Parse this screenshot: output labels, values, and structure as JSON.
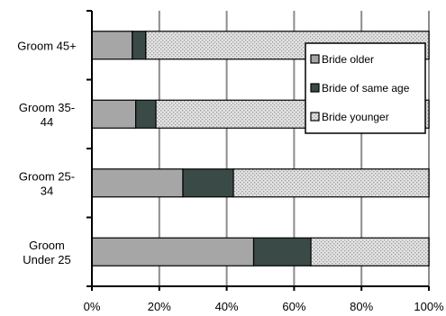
{
  "chart_data": {
    "type": "bar",
    "orientation": "horizontal",
    "stacked": true,
    "percent": true,
    "title": "",
    "xlabel": "",
    "ylabel": "",
    "xlim": [
      0,
      100
    ],
    "x_ticks": [
      "0%",
      "20%",
      "40%",
      "60%",
      "80%",
      "100%"
    ],
    "grid": true,
    "legend_position": "top-right",
    "categories": [
      [
        "Groom 45+"
      ],
      [
        "Groom 35-",
        "44"
      ],
      [
        "Groom 25-",
        "34"
      ],
      [
        "Groom",
        "Under 25"
      ]
    ],
    "series": [
      {
        "name": "Bride older",
        "color": "#a6a6a6",
        "pattern": "solid",
        "values": [
          12,
          13,
          27,
          48
        ]
      },
      {
        "name": "Bride of same age",
        "color": "#3a4a47",
        "pattern": "solid",
        "values": [
          4,
          6,
          15,
          17
        ]
      },
      {
        "name": "Bride younger",
        "color": "#dadada",
        "pattern": "dotted",
        "values": [
          84,
          81,
          58,
          35
        ]
      }
    ]
  }
}
